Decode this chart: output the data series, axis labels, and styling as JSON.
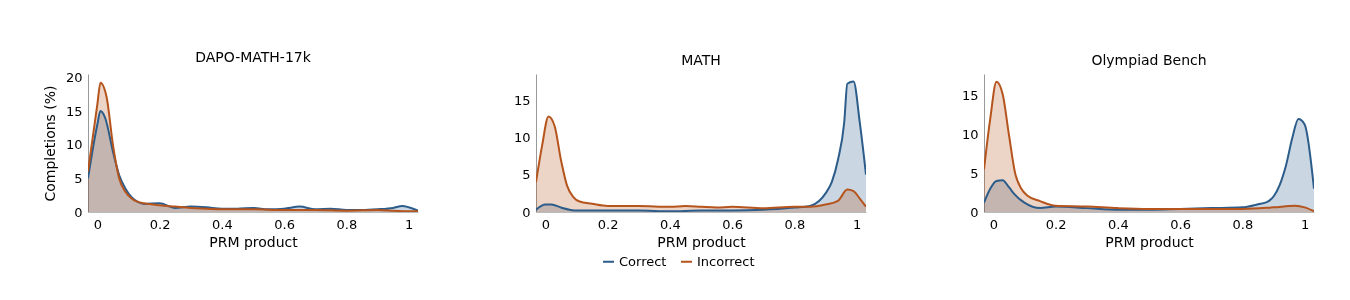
{
  "chart_data": [
    {
      "type": "area",
      "title": "DAPO-MATH-17k",
      "xlabel": "PRM product",
      "ylabel": "Completions (%)",
      "xlim": [
        -0.03,
        1.03
      ],
      "xticks": [
        0,
        0.2,
        0.4,
        0.6,
        0.8,
        1
      ],
      "ylim": [
        0,
        20.5
      ],
      "yticks": [
        0,
        5,
        10,
        15,
        20
      ],
      "legend": "bottom",
      "series": [
        {
          "name": "Correct",
          "color": "#2b5c8a",
          "x": [
            -0.03,
            0,
            0.01,
            0.025,
            0.05,
            0.07,
            0.09,
            0.11,
            0.13,
            0.15,
            0.2,
            0.25,
            0.3,
            0.35,
            0.4,
            0.45,
            0.5,
            0.55,
            0.6,
            0.65,
            0.7,
            0.75,
            0.8,
            0.85,
            0.9,
            0.95,
            0.98,
            1,
            1.03
          ],
          "values": [
            5,
            13,
            15,
            14,
            9,
            5.5,
            3.5,
            2.2,
            1.5,
            1.2,
            1.3,
            0.6,
            0.8,
            0.7,
            0.5,
            0.5,
            0.6,
            0.4,
            0.5,
            0.8,
            0.4,
            0.5,
            0.3,
            0.3,
            0.4,
            0.6,
            0.9,
            0.7,
            0.2
          ]
        },
        {
          "name": "Incorrect",
          "color": "#b5541c",
          "x": [
            -0.03,
            0,
            0.01,
            0.03,
            0.05,
            0.07,
            0.09,
            0.11,
            0.13,
            0.15,
            0.2,
            0.25,
            0.3,
            0.35,
            0.4,
            0.5,
            0.6,
            0.7,
            0.8,
            0.9,
            0.95,
            1,
            1.03
          ],
          "values": [
            6,
            16,
            19.2,
            17,
            10,
            5,
            3,
            2,
            1.5,
            1.3,
            1,
            0.8,
            0.6,
            0.5,
            0.4,
            0.4,
            0.3,
            0.3,
            0.2,
            0.3,
            0.2,
            0.1,
            0.1
          ]
        }
      ]
    },
    {
      "type": "area",
      "title": "MATH",
      "xlabel": "PRM product",
      "xlim": [
        -0.03,
        1.03
      ],
      "xticks": [
        0,
        0.2,
        0.4,
        0.6,
        0.8,
        1
      ],
      "ylim": [
        0,
        18.5
      ],
      "yticks": [
        0,
        5,
        10,
        15
      ],
      "legend": "bottom",
      "series": [
        {
          "name": "Correct",
          "color": "#2b5c8a",
          "x": [
            -0.03,
            0,
            0.02,
            0.05,
            0.1,
            0.2,
            0.3,
            0.4,
            0.5,
            0.6,
            0.7,
            0.8,
            0.85,
            0.88,
            0.9,
            0.92,
            0.94,
            0.96,
            0.97,
            0.99,
            1.01,
            1.03
          ],
          "values": [
            0.3,
            1,
            1,
            0.6,
            0.2,
            0.2,
            0.2,
            0.1,
            0.2,
            0.2,
            0.3,
            0.6,
            0.8,
            1.5,
            2.5,
            4,
            7,
            12,
            17.2,
            17.5,
            12,
            5
          ]
        },
        {
          "name": "Incorrect",
          "color": "#b5541c",
          "x": [
            -0.03,
            -0.01,
            0.01,
            0.03,
            0.05,
            0.07,
            0.09,
            0.11,
            0.15,
            0.2,
            0.3,
            0.4,
            0.45,
            0.5,
            0.55,
            0.6,
            0.7,
            0.8,
            0.85,
            0.9,
            0.94,
            0.97,
            0.99,
            1.01,
            1.03
          ],
          "values": [
            4,
            9,
            12.8,
            11.5,
            7,
            3.5,
            2,
            1.4,
            1.1,
            0.8,
            0.8,
            0.7,
            0.8,
            0.7,
            0.6,
            0.7,
            0.5,
            0.7,
            0.7,
            1,
            1.5,
            3,
            2.8,
            1.8,
            0.7
          ]
        }
      ]
    },
    {
      "type": "area",
      "title": "Olympiad Bench",
      "xlabel": "PRM product",
      "xlim": [
        -0.03,
        1.03
      ],
      "xticks": [
        0,
        0.2,
        0.4,
        0.6,
        0.8,
        1
      ],
      "ylim": [
        0,
        17.8
      ],
      "yticks": [
        0,
        5,
        10,
        15
      ],
      "legend": "bottom",
      "series": [
        {
          "name": "Correct",
          "color": "#2b5c8a",
          "x": [
            -0.03,
            -0.01,
            0.01,
            0.03,
            0.05,
            0.07,
            0.1,
            0.15,
            0.2,
            0.3,
            0.4,
            0.5,
            0.6,
            0.7,
            0.8,
            0.85,
            0.88,
            0.9,
            0.92,
            0.94,
            0.96,
            0.98,
            1,
            1.03
          ],
          "values": [
            1.2,
            3,
            4,
            4.1,
            3.2,
            2.2,
            1.2,
            0.5,
            0.7,
            0.5,
            0.3,
            0.3,
            0.4,
            0.5,
            0.6,
            1,
            1.3,
            2,
            3.5,
            6,
            9.5,
            12,
            11.3,
            3
          ]
        },
        {
          "name": "Incorrect",
          "color": "#b5541c",
          "x": [
            -0.03,
            -0.01,
            0.01,
            0.03,
            0.05,
            0.07,
            0.09,
            0.11,
            0.15,
            0.2,
            0.3,
            0.4,
            0.5,
            0.6,
            0.7,
            0.8,
            0.9,
            0.97,
            1,
            1.03
          ],
          "values": [
            5.5,
            12,
            16.8,
            15.2,
            10,
            5,
            3,
            2.1,
            1.4,
            0.8,
            0.7,
            0.5,
            0.4,
            0.4,
            0.4,
            0.4,
            0.6,
            0.8,
            0.6,
            0.1
          ]
        }
      ]
    }
  ]
}
